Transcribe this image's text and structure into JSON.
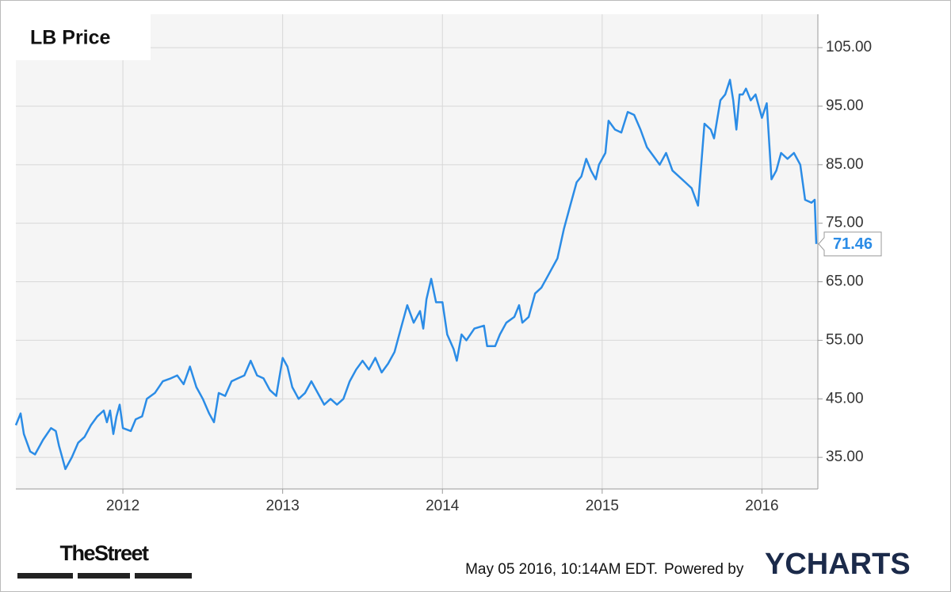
{
  "chart_data": {
    "type": "line",
    "title": "LB Price",
    "color": "#2b8ce6",
    "grid": true,
    "y_axis_side": "right",
    "x": [
      2011.33,
      2011.36,
      2011.38,
      2011.42,
      2011.45,
      2011.5,
      2011.55,
      2011.58,
      2011.6,
      2011.62,
      2011.64,
      2011.68,
      2011.72,
      2011.76,
      2011.8,
      2011.84,
      2011.88,
      2011.9,
      2011.92,
      2011.94,
      2011.96,
      2011.98,
      2012.0,
      2012.05,
      2012.08,
      2012.12,
      2012.15,
      2012.2,
      2012.25,
      2012.3,
      2012.34,
      2012.38,
      2012.42,
      2012.46,
      2012.5,
      2012.54,
      2012.57,
      2012.6,
      2012.64,
      2012.68,
      2012.72,
      2012.76,
      2012.8,
      2012.84,
      2012.88,
      2012.92,
      2012.96,
      2013.0,
      2013.03,
      2013.06,
      2013.1,
      2013.14,
      2013.18,
      2013.22,
      2013.26,
      2013.3,
      2013.34,
      2013.38,
      2013.42,
      2013.46,
      2013.5,
      2013.54,
      2013.58,
      2013.62,
      2013.66,
      2013.7,
      2013.74,
      2013.78,
      2013.82,
      2013.86,
      2013.88,
      2013.9,
      2013.93,
      2013.96,
      2014.0,
      2014.03,
      2014.07,
      2014.09,
      2014.12,
      2014.15,
      2014.2,
      2014.26,
      2014.28,
      2014.33,
      2014.36,
      2014.4,
      2014.45,
      2014.48,
      2014.5,
      2014.54,
      2014.58,
      2014.62,
      2014.66,
      2014.68,
      2014.72,
      2014.76,
      2014.8,
      2014.84,
      2014.87,
      2014.9,
      2014.93,
      2014.96,
      2014.98,
      2015.02,
      2015.04,
      2015.08,
      2015.12,
      2015.16,
      2015.2,
      2015.24,
      2015.28,
      2015.32,
      2015.36,
      2015.4,
      2015.44,
      2015.48,
      2015.52,
      2015.56,
      2015.6,
      2015.64,
      2015.68,
      2015.7,
      2015.74,
      2015.77,
      2015.8,
      2015.82,
      2015.84,
      2015.86,
      2015.88,
      2015.9,
      2015.93,
      2015.96,
      2016.0,
      2016.03,
      2016.06,
      2016.09,
      2016.12,
      2016.16,
      2016.2,
      2016.24,
      2016.27,
      2016.31,
      2016.33,
      2016.34
    ],
    "values": [
      40.5,
      42.5,
      39,
      36,
      35.5,
      38,
      40,
      39.5,
      37,
      35,
      33,
      35,
      37.5,
      38.5,
      40.5,
      42,
      43,
      41,
      43,
      39,
      42,
      44,
      40,
      39.5,
      41.5,
      42,
      45,
      46,
      48,
      48.5,
      49,
      47.5,
      50.5,
      47,
      45,
      42.5,
      41,
      46,
      45.5,
      48,
      48.5,
      49,
      51.5,
      49,
      48.5,
      46.5,
      45.5,
      52,
      50.5,
      47,
      45,
      46,
      48,
      46,
      44,
      45,
      44,
      45,
      48,
      50,
      51.5,
      50,
      52,
      49.5,
      51,
      53,
      57,
      61,
      58,
      60,
      57,
      62,
      65.5,
      61.5,
      61.5,
      56,
      53.5,
      51.5,
      56,
      55,
      57,
      57.5,
      54,
      54,
      56,
      58,
      59,
      61,
      58,
      59,
      63,
      64,
      66,
      67,
      69,
      74,
      78,
      82,
      83,
      86,
      84,
      82.5,
      85,
      87,
      92.5,
      91,
      90.5,
      94,
      93.5,
      91,
      88,
      86.5,
      85,
      87,
      84,
      83,
      82,
      81,
      78,
      92,
      91,
      89.5,
      96,
      97,
      99.5,
      96,
      91,
      97,
      97,
      98,
      96,
      97,
      93,
      95.5,
      82.5,
      84,
      87,
      86,
      87,
      85,
      79,
      78.5,
      79,
      71.46
    ],
    "xlim": [
      2011.33,
      2016.35
    ],
    "xticks": [
      2012,
      2013,
      2014,
      2015,
      2016
    ],
    "ylim": [
      29.6,
      110.7
    ],
    "yticks": [
      {
        "value": 35,
        "label": "35.00"
      },
      {
        "value": 45,
        "label": "45.00"
      },
      {
        "value": 55,
        "label": "55.00"
      },
      {
        "value": 65,
        "label": "65.00"
      },
      {
        "value": 75,
        "label": "75.00"
      },
      {
        "value": 85,
        "label": "85.00"
      },
      {
        "value": 95,
        "label": "95.00"
      },
      {
        "value": 105,
        "label": "105.00"
      }
    ],
    "source": "TheStreet",
    "timestamp": "May 05 2016, 10:14AM EDT.",
    "powered_by": "Powered by",
    "brand": "YCHARTS"
  }
}
